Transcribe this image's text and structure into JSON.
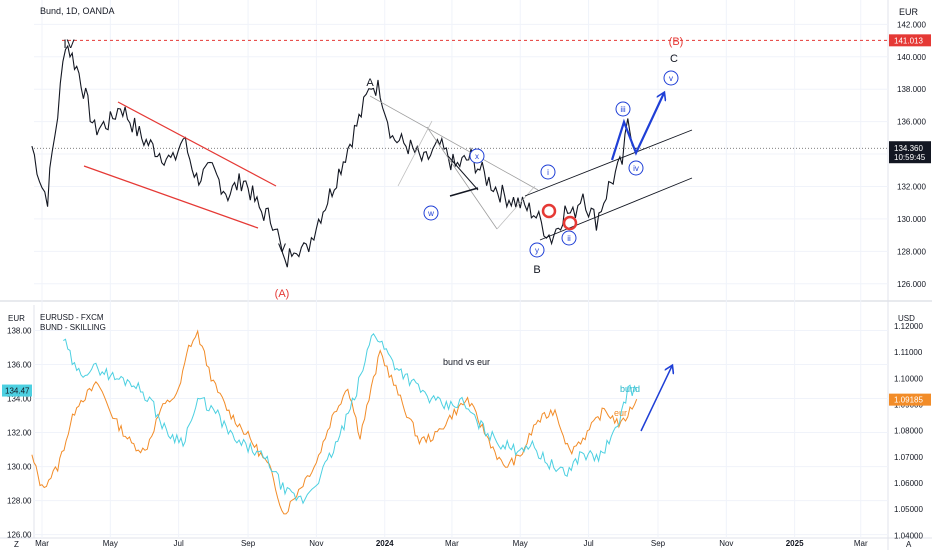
{
  "header": {
    "symbol_title": "Bund, 1D, OANDA",
    "currency_top": "EUR"
  },
  "sub_pane": {
    "series_1": "EURUSD - FXCM",
    "series_2": "BUND - SKILLING",
    "left_unit": "EUR",
    "right_unit": "USD",
    "note": "bund vs eur",
    "label_bund": "bund",
    "label_eur": "eur"
  },
  "corners": {
    "bottom_left": "Z",
    "bottom_right": "A"
  },
  "colors": {
    "bund_line": "#4dd0e1",
    "eur_line": "#f28c28",
    "red": "#e53935",
    "blue": "#1f3fd6",
    "text": "#131722",
    "grid": "#f0f3fa"
  },
  "chart_data": [
    {
      "type": "line",
      "title": "Bund, 1D, OANDA",
      "x_ticks": [
        "Mar",
        "May",
        "Jul",
        "Sep",
        "Nov",
        "2024",
        "Mar",
        "May",
        "Jul",
        "Sep",
        "Nov",
        "2025",
        "Mar"
      ],
      "y_ticks": [
        126,
        128,
        130,
        132,
        134,
        136,
        138,
        140,
        142
      ],
      "ylim": [
        125,
        143.5
      ],
      "resistance_level": 141.013,
      "last_price": 134.36,
      "countdown": "10:59:45",
      "wave_labels": [
        "IV",
        "V",
        "(A)",
        "A",
        "B",
        "C",
        "(B)",
        "w",
        "x",
        "y",
        "i",
        "ii",
        "iii",
        "iv",
        "v"
      ],
      "series": [
        {
          "name": "Bund",
          "x": [
            "2023-02-20",
            "2023-03-01",
            "2023-03-06",
            "2023-03-10",
            "2023-03-15",
            "2023-03-22",
            "2023-04-03",
            "2023-04-17",
            "2023-05-01",
            "2023-05-10",
            "2023-05-29",
            "2023-06-12",
            "2023-06-26",
            "2023-07-05",
            "2023-07-17",
            "2023-07-31",
            "2023-08-14",
            "2023-08-28",
            "2023-09-11",
            "2023-09-25",
            "2023-10-04",
            "2023-10-12",
            "2023-10-23",
            "2023-11-01",
            "2023-11-13",
            "2023-11-27",
            "2023-12-11",
            "2023-12-20",
            "2023-12-28",
            "2024-01-08",
            "2024-01-22",
            "2024-02-05",
            "2024-02-19",
            "2024-03-04",
            "2024-03-18",
            "2024-04-01",
            "2024-04-15",
            "2024-04-29",
            "2024-05-13",
            "2024-05-29",
            "2024-06-10",
            "2024-06-17",
            "2024-06-26",
            "2024-07-01",
            "2024-07-08",
            "2024-07-19",
            "2024-07-31",
            "2024-08-05",
            "2024-08-13"
          ],
          "values": [
            134.5,
            132.0,
            131.3,
            134.0,
            136.5,
            141.0,
            139.0,
            135.5,
            136.0,
            137.0,
            135.0,
            134.2,
            133.5,
            135.0,
            132.5,
            133.0,
            131.5,
            132.5,
            130.6,
            129.8,
            127.0,
            128.5,
            128.0,
            129.7,
            131.5,
            134.0,
            136.5,
            138.3,
            138.0,
            135.0,
            134.5,
            133.5,
            134.5,
            133.2,
            133.8,
            132.5,
            131.5,
            131.0,
            130.4,
            128.8,
            130.5,
            130.2,
            131.7,
            130.6,
            129.9,
            132.0,
            133.5,
            135.8,
            134.36
          ]
        }
      ]
    },
    {
      "type": "line",
      "title": "EURUSD - FXCM vs BUND - SKILLING",
      "x_ticks": [
        "Mar",
        "May",
        "Jul",
        "Sep",
        "Nov",
        "2024",
        "Mar",
        "May",
        "Jul",
        "Sep",
        "Nov",
        "2025",
        "Mar"
      ],
      "y_left_ticks": [
        "126.00",
        "128.00",
        "130.00",
        "132.00",
        "134.00",
        "136.00",
        "138.00"
      ],
      "y_right_ticks": [
        "1.04000",
        "1.05000",
        "1.06000",
        "1.07000",
        "1.08000",
        "1.09000",
        "1.10000",
        "1.11000",
        "1.12000"
      ],
      "ylim_left": [
        125.8,
        139.5
      ],
      "ylim_right": [
        1.039,
        1.128
      ],
      "last_bund": 134.47,
      "last_eur": 1.09185,
      "series": [
        {
          "name": "EURUSD - FXCM",
          "axis": "right",
          "x": [
            "2023-02-20",
            "2023-03-01",
            "2023-03-15",
            "2023-04-01",
            "2023-04-20",
            "2023-05-05",
            "2023-05-20",
            "2023-06-01",
            "2023-06-15",
            "2023-07-01",
            "2023-07-10",
            "2023-07-18",
            "2023-08-01",
            "2023-08-15",
            "2023-09-01",
            "2023-09-20",
            "2023-10-03",
            "2023-10-20",
            "2023-11-01",
            "2023-11-15",
            "2023-11-29",
            "2023-12-10",
            "2023-12-28",
            "2024-01-15",
            "2024-02-01",
            "2024-02-15",
            "2024-03-01",
            "2024-03-15",
            "2024-04-01",
            "2024-04-16",
            "2024-05-01",
            "2024-05-15",
            "2024-06-01",
            "2024-06-14",
            "2024-06-28",
            "2024-07-15",
            "2024-07-30",
            "2024-08-13"
          ],
          "values": [
            1.07,
            1.058,
            1.066,
            1.09,
            1.098,
            1.084,
            1.075,
            1.072,
            1.088,
            1.095,
            1.112,
            1.117,
            1.098,
            1.087,
            1.078,
            1.066,
            1.048,
            1.06,
            1.068,
            1.085,
            1.097,
            1.078,
            1.11,
            1.092,
            1.076,
            1.078,
            1.086,
            1.092,
            1.078,
            1.066,
            1.07,
            1.083,
            1.088,
            1.072,
            1.078,
            1.088,
            1.082,
            1.092
          ]
        },
        {
          "name": "BUND - SKILLING",
          "axis": "left",
          "x": [
            "2023-03-20",
            "2023-04-01",
            "2023-04-20",
            "2023-05-05",
            "2023-05-20",
            "2023-06-05",
            "2023-06-20",
            "2023-07-05",
            "2023-07-20",
            "2023-08-05",
            "2023-08-20",
            "2023-09-05",
            "2023-09-20",
            "2023-10-04",
            "2023-10-20",
            "2023-11-05",
            "2023-11-20",
            "2023-12-05",
            "2023-12-22",
            "2024-01-10",
            "2024-01-25",
            "2024-02-10",
            "2024-02-25",
            "2024-03-10",
            "2024-03-25",
            "2024-04-10",
            "2024-04-25",
            "2024-05-10",
            "2024-05-25",
            "2024-06-10",
            "2024-06-25",
            "2024-07-10",
            "2024-07-25",
            "2024-08-05",
            "2024-08-13"
          ],
          "values": [
            137.5,
            135.5,
            135.8,
            135.2,
            135.0,
            134.0,
            132.0,
            131.5,
            134.0,
            133.0,
            131.5,
            131.0,
            130.2,
            128.5,
            128.0,
            129.5,
            131.5,
            134.0,
            138.0,
            136.0,
            135.0,
            134.0,
            133.5,
            133.8,
            132.5,
            131.5,
            131.0,
            131.3,
            130.3,
            129.5,
            130.8,
            130.5,
            132.0,
            134.5,
            134.47
          ]
        }
      ]
    }
  ]
}
